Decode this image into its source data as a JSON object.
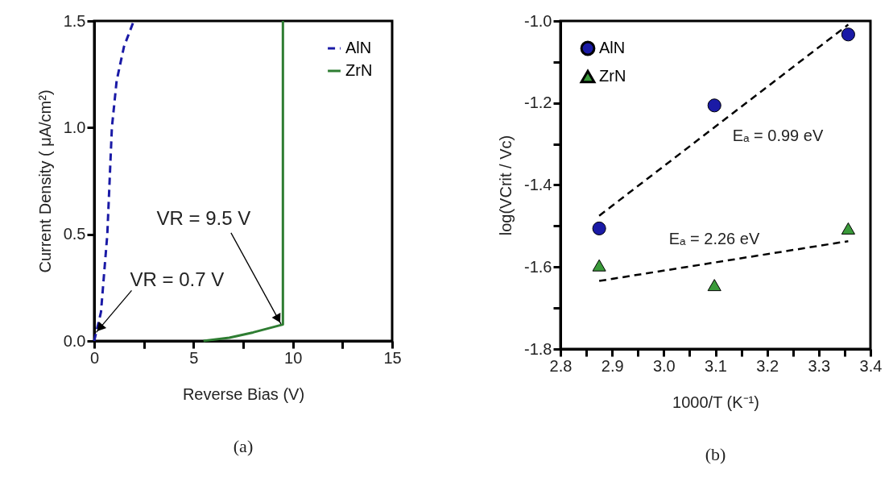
{
  "chart_data": [
    {
      "type": "line",
      "title": "(a)",
      "xlabel": "Reverse Bias (V)",
      "ylabel": "Current Density ( μA/cm²)",
      "xlim": [
        0,
        15
      ],
      "ylim": [
        0,
        1.5
      ],
      "xticks": [
        0,
        {
          "value": 2.5,
          "label": null
        },
        5,
        {
          "value": 7.5,
          "label": null
        },
        10,
        {
          "value": 12.5,
          "label": null
        },
        15
      ],
      "yticks": [
        {
          "value": 0,
          "label": "0.0"
        },
        0.5,
        {
          "value": 1,
          "label": "1.0"
        },
        1.5
      ],
      "legend": "top right",
      "grid": false,
      "series": [
        {
          "name": "AlN",
          "color": "#1a1aa6",
          "line_style": "dashed",
          "x": [
            0,
            0.34,
            0.66,
            0.89,
            1.13,
            1.5,
            1.99
          ],
          "values": [
            0,
            0.135,
            0.5,
            1.0,
            1.22,
            1.38,
            1.5
          ]
        },
        {
          "name": "ZrN",
          "color": "#2e7d32",
          "line_style": "solid",
          "x": [
            5.5,
            6.8,
            8.0,
            9.5,
            9.5
          ],
          "values": [
            0,
            0.015,
            0.04,
            0.077,
            1.5
          ]
        }
      ],
      "annotations": [
        {
          "text": "VR = 0.7 V",
          "x": 0.1,
          "y": 0.04
        },
        {
          "text": "VR = 9.5 V",
          "x": 9.4,
          "y": 0.08
        }
      ]
    },
    {
      "type": "scatter",
      "title": "(b)",
      "xlabel": "1000/T (K⁻¹)",
      "ylabel": "log(VCrit / Vc)",
      "xlim": [
        2.8,
        3.4
      ],
      "ylim": [
        -1.8,
        -1.0
      ],
      "xticks": [
        2.8,
        {
          "value": 2.85,
          "label": null
        },
        2.9,
        {
          "value": 2.95,
          "label": null
        },
        {
          "value": 3.0,
          "label": "3.0"
        },
        {
          "value": 3.05,
          "label": null
        },
        3.1,
        {
          "value": 3.15,
          "label": null
        },
        3.2,
        {
          "value": 3.25,
          "label": null
        },
        3.3,
        {
          "value": 3.35,
          "label": null
        },
        3.4
      ],
      "yticks": [
        {
          "value": -1.8,
          "label": "-1.8"
        },
        {
          "value": -1.7,
          "label": null
        },
        {
          "value": -1.6,
          "label": "-1.6"
        },
        {
          "value": -1.5,
          "label": null
        },
        {
          "value": -1.4,
          "label": "-1.4"
        },
        {
          "value": -1.3,
          "label": null
        },
        {
          "value": -1.2,
          "label": "-1.2"
        },
        {
          "value": -1.1,
          "label": null
        },
        {
          "value": -1.0,
          "label": "-1.0"
        }
      ],
      "legend": "top left",
      "grid": false,
      "series": [
        {
          "name": "AlN",
          "color": "#1a1aa6",
          "marker": "circle",
          "x": [
            2.875,
            3.098,
            3.357
          ],
          "values": [
            -1.506,
            -1.206,
            -1.033
          ]
        },
        {
          "name": "ZrN",
          "color": "#3a9a3a",
          "marker": "triangle",
          "x": [
            2.875,
            3.098,
            3.357
          ],
          "values": [
            -1.596,
            -1.644,
            -1.506
          ]
        },
        {
          "type": "line",
          "color": "#000000",
          "line_style": "dashed",
          "marker": "none",
          "x": [
            2.875,
            3.357
          ],
          "values": [
            -1.475,
            -1.009
          ]
        },
        {
          "type": "line",
          "color": "#000000",
          "line_style": "dashed",
          "marker": "none",
          "x": [
            2.875,
            3.357
          ],
          "values": [
            -1.634,
            -1.537
          ]
        }
      ],
      "annotations": [
        "Eₐ = 0.99 eV",
        "Eₐ = 2.26 eV"
      ]
    }
  ]
}
